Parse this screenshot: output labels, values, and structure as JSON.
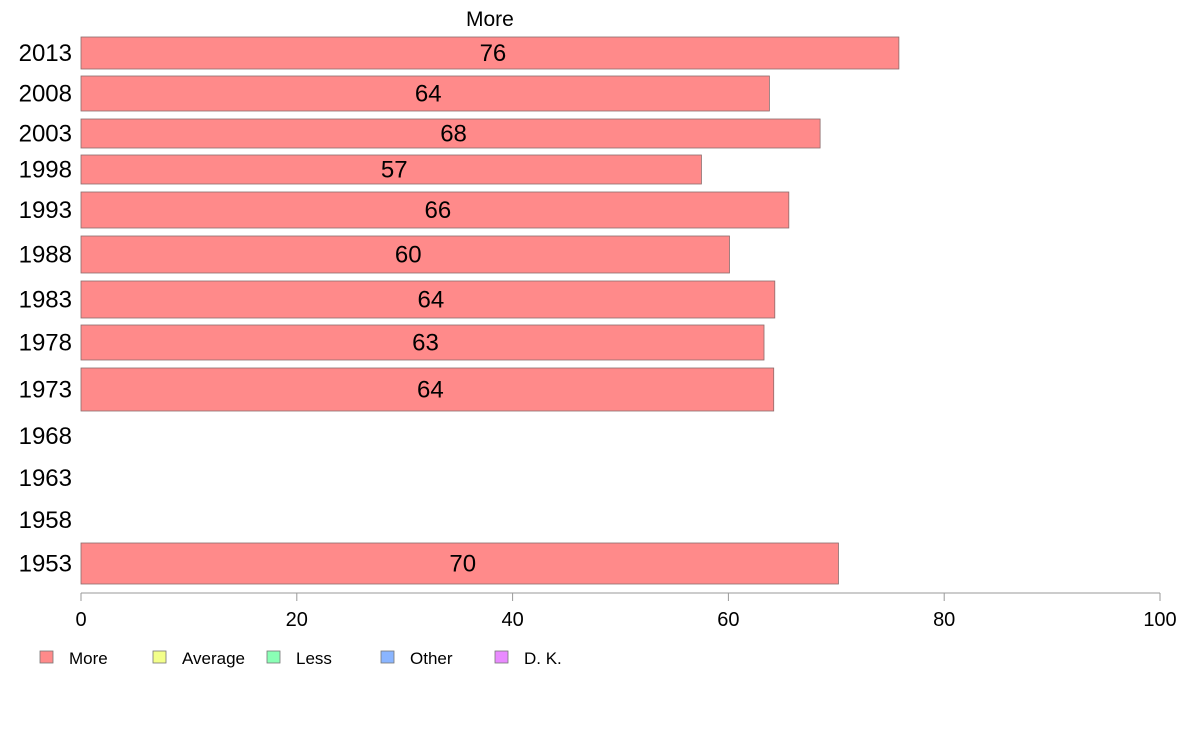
{
  "chart_data": {
    "type": "bar",
    "orientation": "horizontal",
    "title": "More",
    "categories": [
      "2013",
      "2008",
      "2003",
      "1998",
      "1993",
      "1988",
      "1983",
      "1978",
      "1973",
      "1968",
      "1963",
      "1958",
      "1953"
    ],
    "series": [
      {
        "name": "More",
        "color": "#ff8a8a",
        "values": [
          75.8,
          63.8,
          68.5,
          57.5,
          65.6,
          60.1,
          64.3,
          63.3,
          64.2,
          null,
          null,
          null,
          70.2
        ],
        "labels": [
          "76",
          "64",
          "68",
          "57",
          "66",
          "60",
          "64",
          "63",
          "64",
          "",
          "",
          "",
          "70"
        ]
      }
    ],
    "xlim": [
      0,
      100
    ],
    "xticks": [
      "0",
      "20",
      "40",
      "60",
      "80",
      "100"
    ],
    "grid": false,
    "legend_position": "bottom-left",
    "legend": [
      {
        "label": "More",
        "color": "#ff8a8a"
      },
      {
        "label": "Average",
        "color": "#f3ff8a"
      },
      {
        "label": "Less",
        "color": "#8affb5"
      },
      {
        "label": "Other",
        "color": "#8ab5ff"
      },
      {
        "label": "D. K.",
        "color": "#e98aff"
      }
    ]
  }
}
